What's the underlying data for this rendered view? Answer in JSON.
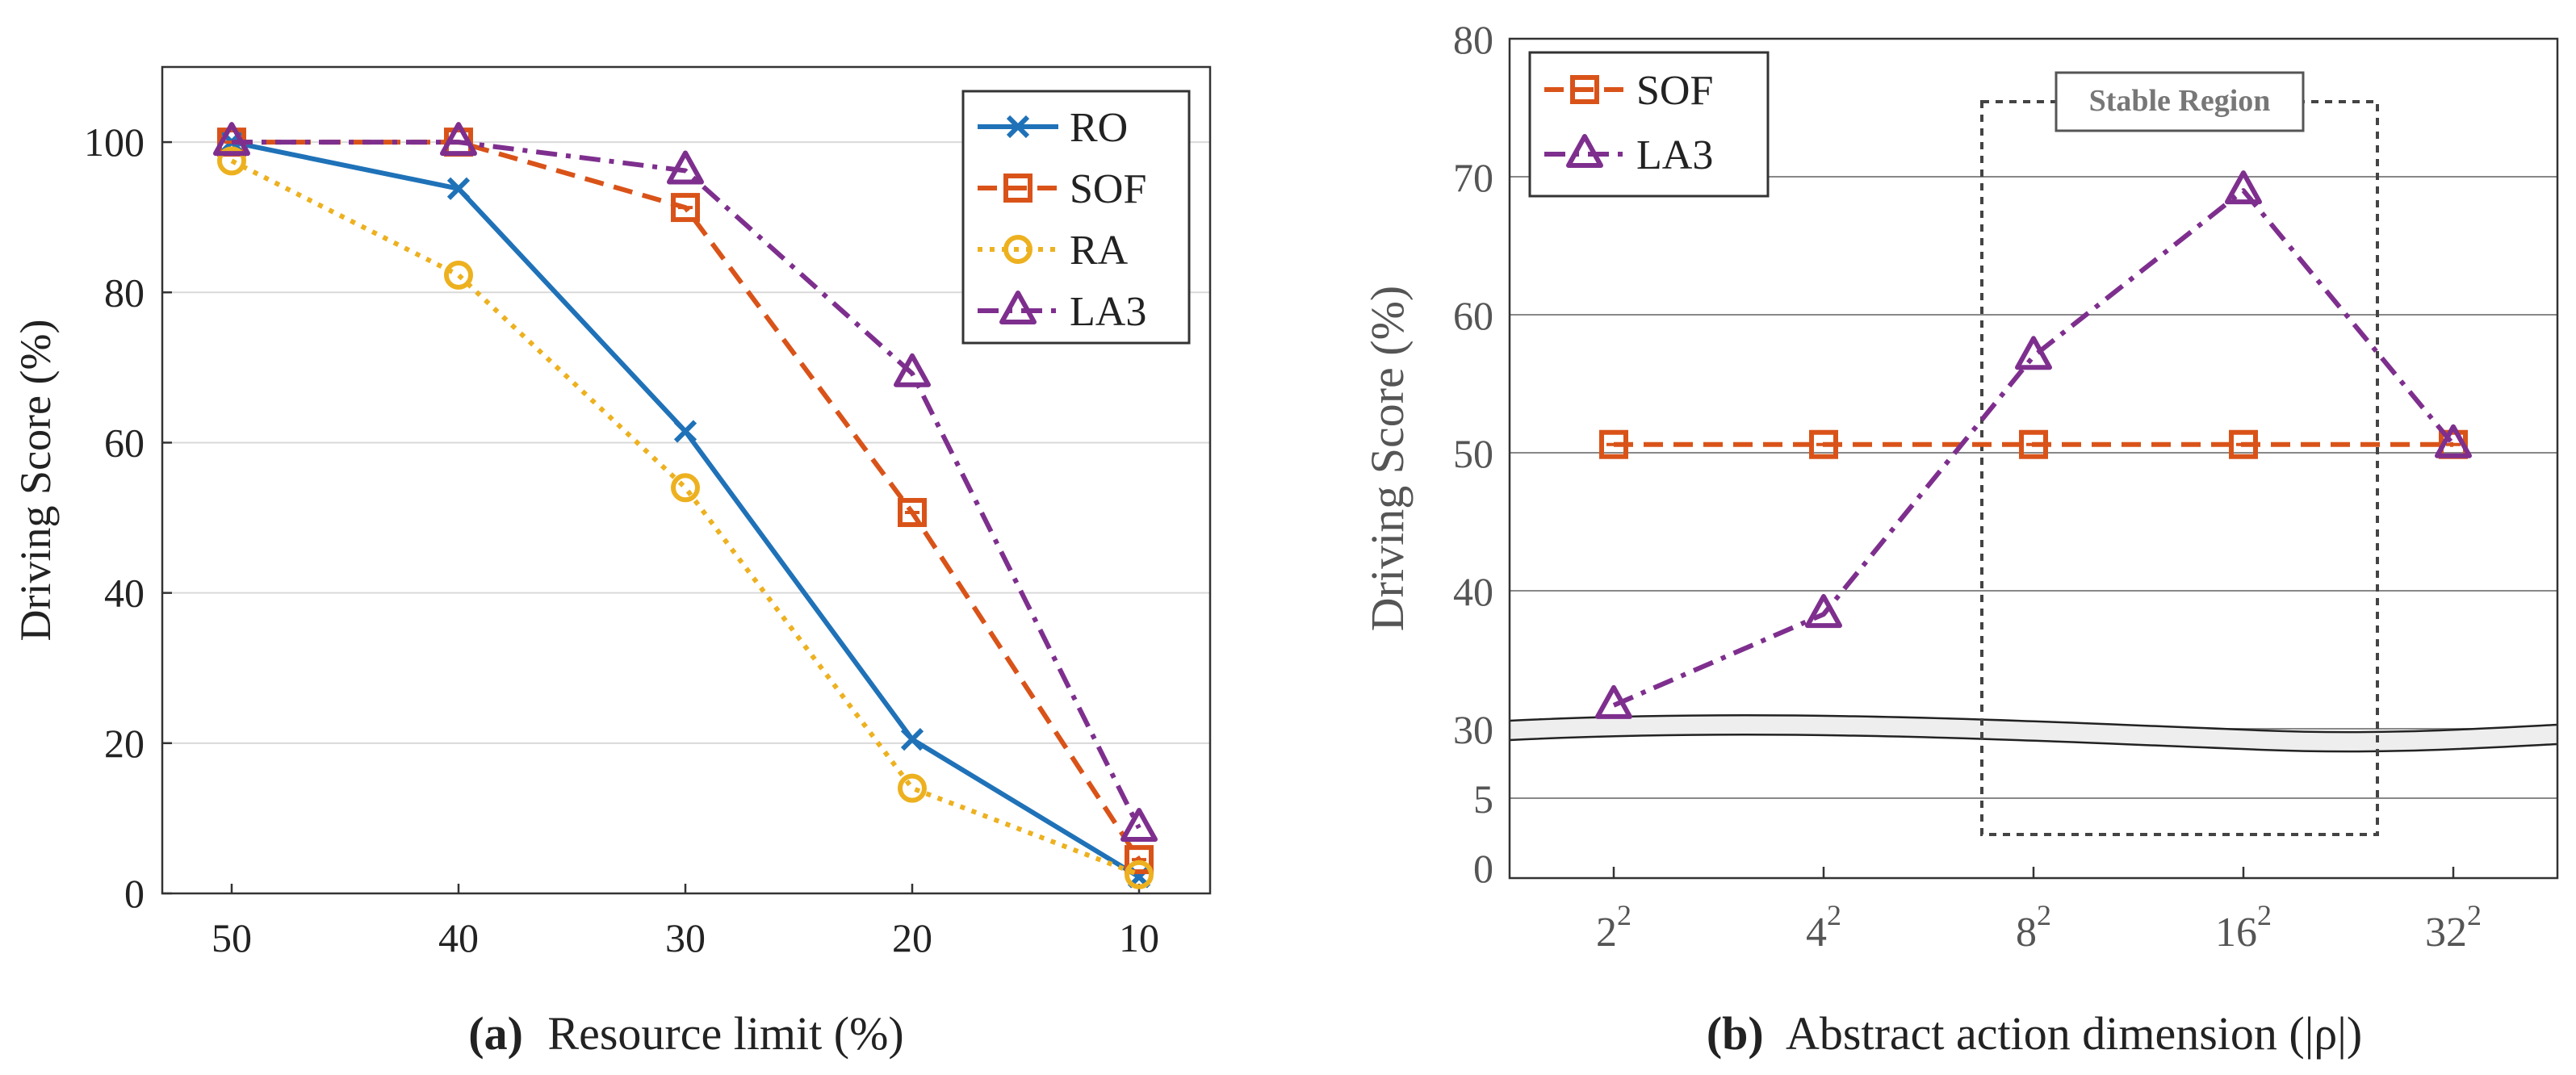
{
  "figure": {
    "colors": {
      "RO": "#1f72b8",
      "SOF": "#d95319",
      "RA": "#edb120",
      "LA3": "#7e2f8e",
      "axis": "#333333",
      "grid": "#d9d9d9"
    }
  },
  "chart_data": [
    {
      "type": "line",
      "panel_letter": "(a)",
      "caption": "Resource limit (%)",
      "xlabel": "",
      "ylabel": "Driving Score (%)",
      "categories": [
        "50",
        "40",
        "30",
        "20",
        "10"
      ],
      "ylim": [
        0,
        110
      ],
      "yticks": [
        "0",
        "20",
        "40",
        "60",
        "80",
        "100"
      ],
      "legend_position": "top-right",
      "series": [
        {
          "name": "RO",
          "values": [
            100,
            93.8,
            61.5,
            20.5,
            2.2
          ],
          "marker": "x",
          "dash": "solid"
        },
        {
          "name": "SOF",
          "values": [
            100,
            100,
            91.3,
            50.7,
            4.5
          ],
          "marker": "square",
          "dash": "dashed"
        },
        {
          "name": "RA",
          "values": [
            97.5,
            82.3,
            54,
            14,
            2.5
          ],
          "marker": "circle",
          "dash": "dotted"
        },
        {
          "name": "LA3",
          "values": [
            100,
            100,
            96.2,
            69.2,
            8.7
          ],
          "marker": "triangle",
          "dash": "dashdot"
        }
      ]
    },
    {
      "type": "line",
      "panel_letter": "(b)",
      "caption": "Abstract action dimension (|ρ|)",
      "xlabel": "",
      "ylabel": "Driving Score (%)",
      "categories": [
        {
          "base": "2",
          "exp": "2"
        },
        {
          "base": "4",
          "exp": "2"
        },
        {
          "base": "8",
          "exp": "2"
        },
        {
          "base": "16",
          "exp": "2"
        },
        {
          "base": "32",
          "exp": "2"
        }
      ],
      "ylim": [
        0,
        80
      ],
      "broken_axis": true,
      "yticks": [
        "0",
        "5",
        "30",
        "40",
        "50",
        "60",
        "70",
        "80"
      ],
      "annotation": "Stable Region",
      "legend_position": "top-left",
      "series": [
        {
          "name": "SOF",
          "values": [
            50.6,
            50.6,
            50.6,
            50.6,
            50.6
          ],
          "marker": "square",
          "dash": "dashed"
        },
        {
          "name": "LA3",
          "values": [
            31.7,
            38.3,
            57,
            69,
            50.6
          ],
          "marker": "triangle",
          "dash": "dashdot"
        }
      ]
    }
  ]
}
